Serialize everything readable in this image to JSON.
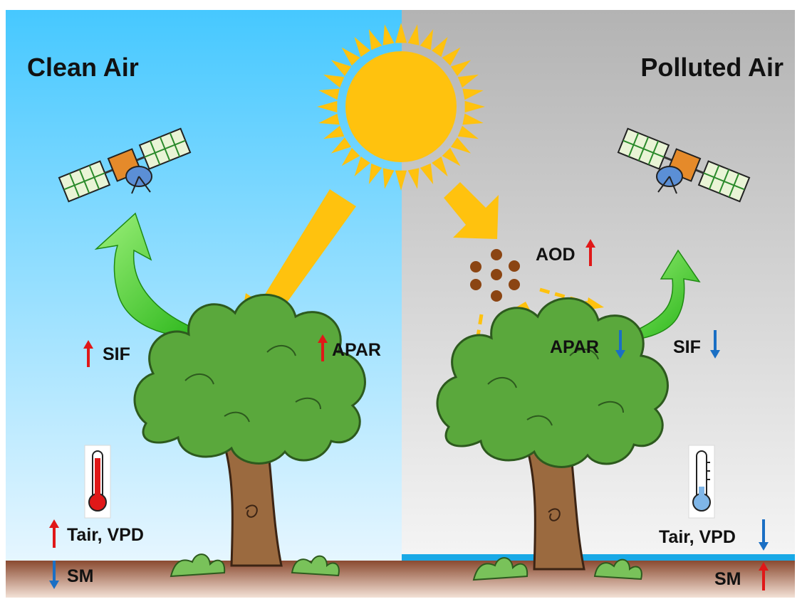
{
  "panels": {
    "left": {
      "title": "Clean Air",
      "sky_top": "#46c8ff",
      "sky_bottom": "#e6f6ff"
    },
    "right": {
      "title": "Polluted Air",
      "sky_top": "#b7b7b7",
      "sky_bottom": "#f4f4f4"
    }
  },
  "labels": {
    "left_sif": "SIF",
    "left_apar": "APAR",
    "left_tair": "Tair, VPD",
    "left_sm": "SM",
    "right_aod": "AOD",
    "right_apar": "APAR",
    "right_sif": "SIF",
    "right_tair": "Tair, VPD",
    "right_sm": "SM"
  },
  "colors": {
    "sun": "#ffc20e",
    "light_arrow": "#ffc20e",
    "sif_arrow": "#3fd12a",
    "arrow_up": "#e01818",
    "arrow_down": "#1a6fc4",
    "aerosol": "#8b4513",
    "soil": "#9c5a3c",
    "water_line": "#19a9e6",
    "foliage": "#5aa83c",
    "trunk": "#9b6a3f"
  },
  "icons": {
    "satellite": "satellite-icon",
    "thermometer_hot": "thermometer-hot-icon",
    "thermometer_cold": "thermometer-cold-icon",
    "sun": "sun-icon",
    "tree": "tree-icon"
  }
}
